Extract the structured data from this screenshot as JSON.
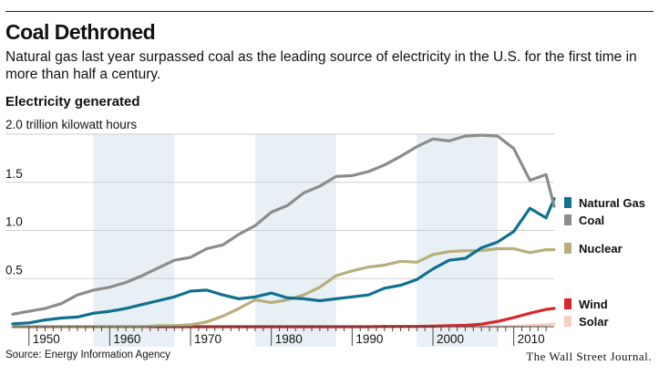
{
  "header": {
    "title": "Coal Dethroned",
    "subtitle": "Natural gas last year surpassed coal as the leading source of electricity in the U.S. for the first time in more than half a century.",
    "section_label": "Electricity generated",
    "unit_label": "2.0 trillion kilowatt hours"
  },
  "footer": {
    "source": "Source: Energy Information Agency",
    "publisher": "The Wall Street Journal."
  },
  "colors": {
    "natural_gas": "#11708f",
    "coal": "#8c8c8c",
    "nuclear": "#b8ae7c",
    "wind": "#d9262c",
    "solar": "#f5cfbf",
    "band": "#e8f0f6",
    "grid": "#cfcfcf"
  },
  "chart_data": {
    "type": "line",
    "title": "Electricity generated",
    "ylabel": "trillion kilowatt hours",
    "xlabel": "",
    "xlim": [
      1948,
      2015
    ],
    "ylim": [
      0,
      2.0
    ],
    "x_ticks": [
      1950,
      1960,
      1970,
      1980,
      1990,
      2000,
      2010
    ],
    "y_ticks": [
      {
        "value": 0.5,
        "label": "0.5"
      },
      {
        "value": 1.0,
        "label": "1.0"
      },
      {
        "value": 1.5,
        "label": "1.5"
      },
      {
        "value": 2.0,
        "label": "2.0"
      }
    ],
    "shaded_periods": [
      [
        1958,
        1968
      ],
      [
        1978,
        1988
      ],
      [
        1998,
        2008
      ]
    ],
    "legend": [
      {
        "name": "Natural Gas",
        "color": "#11708f"
      },
      {
        "name": "Coal",
        "color": "#8c8c8c"
      },
      {
        "name": "Nuclear",
        "color": "#b8ae7c"
      },
      {
        "name": "Wind",
        "color": "#d9262c"
      },
      {
        "name": "Solar",
        "color": "#f5cfbf"
      }
    ],
    "x": [
      1948,
      1950,
      1952,
      1954,
      1956,
      1958,
      1960,
      1962,
      1964,
      1966,
      1968,
      1970,
      1972,
      1974,
      1976,
      1978,
      1980,
      1982,
      1984,
      1986,
      1988,
      1990,
      1992,
      1994,
      1996,
      1998,
      2000,
      2002,
      2004,
      2006,
      2008,
      2010,
      2012,
      2014,
      2015
    ],
    "series": [
      {
        "name": "Coal",
        "color": "#8c8c8c",
        "values": [
          0.13,
          0.16,
          0.19,
          0.24,
          0.33,
          0.38,
          0.41,
          0.46,
          0.53,
          0.61,
          0.69,
          0.72,
          0.81,
          0.85,
          0.96,
          1.05,
          1.19,
          1.26,
          1.39,
          1.46,
          1.56,
          1.57,
          1.61,
          1.68,
          1.77,
          1.87,
          1.95,
          1.93,
          1.98,
          1.99,
          1.98,
          1.85,
          1.52,
          1.58,
          1.25
        ]
      },
      {
        "name": "Natural Gas",
        "color": "#11708f",
        "values": [
          0.03,
          0.04,
          0.07,
          0.09,
          0.1,
          0.14,
          0.16,
          0.19,
          0.23,
          0.27,
          0.31,
          0.37,
          0.38,
          0.33,
          0.29,
          0.31,
          0.35,
          0.3,
          0.29,
          0.27,
          0.29,
          0.31,
          0.33,
          0.4,
          0.43,
          0.49,
          0.6,
          0.69,
          0.71,
          0.82,
          0.88,
          0.99,
          1.23,
          1.13,
          1.33
        ]
      },
      {
        "name": "Nuclear",
        "color": "#b8ae7c",
        "values": [
          0,
          0,
          0,
          0,
          0,
          0,
          0,
          0,
          0,
          0.01,
          0.01,
          0.02,
          0.05,
          0.11,
          0.19,
          0.28,
          0.25,
          0.28,
          0.33,
          0.41,
          0.53,
          0.58,
          0.62,
          0.64,
          0.68,
          0.67,
          0.75,
          0.78,
          0.79,
          0.79,
          0.81,
          0.81,
          0.77,
          0.8,
          0.8
        ]
      },
      {
        "name": "Wind",
        "color": "#d9262c",
        "values": [
          0,
          0,
          0,
          0,
          0,
          0,
          0,
          0,
          0,
          0,
          0,
          0,
          0,
          0,
          0,
          0,
          0,
          0,
          0,
          0,
          0,
          0,
          0,
          0.003,
          0.003,
          0.003,
          0.006,
          0.01,
          0.014,
          0.027,
          0.055,
          0.095,
          0.14,
          0.18,
          0.19
        ]
      },
      {
        "name": "Solar",
        "color": "#f5cfbf",
        "values": [
          0,
          0,
          0,
          0,
          0,
          0,
          0,
          0,
          0,
          0,
          0,
          0,
          0,
          0,
          0,
          0,
          0,
          0,
          0,
          0,
          0,
          0,
          0,
          0,
          0,
          0,
          0,
          0,
          0,
          0,
          0.002,
          0.004,
          0.01,
          0.02,
          0.03
        ]
      }
    ]
  }
}
